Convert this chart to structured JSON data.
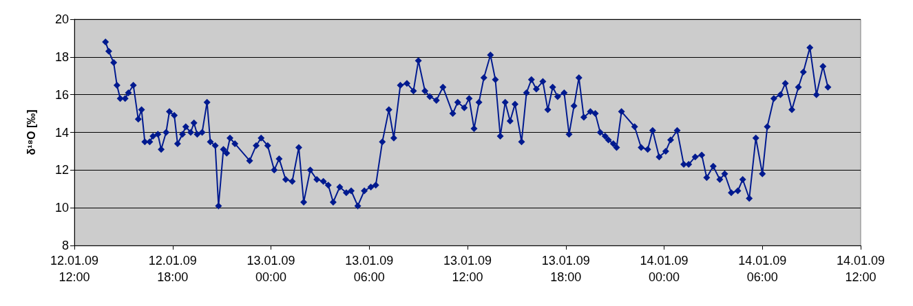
{
  "chart_data": {
    "type": "line",
    "ylabel": "δ¹⁸O [‰]",
    "x": [
      "--01-12T13:54",
      "--01-12T14:06",
      "--01-12T14:24",
      "--01-12T14:36",
      "--01-12T14:48",
      "--01-12T15:06",
      "--01-12T15:18",
      "--01-12T15:36",
      "--01-12T15:54",
      "--01-12T16:06",
      "--01-12T16:18",
      "--01-12T16:36",
      "--01-12T16:48",
      "--01-12T17:06",
      "--01-12T17:18",
      "--01-12T17:36",
      "--01-12T17:48",
      "--01-12T18:06",
      "--01-12T18:18",
      "--01-12T18:36",
      "--01-12T18:48",
      "--01-12T19:06",
      "--01-12T19:18",
      "--01-12T19:30",
      "--01-12T19:48",
      "--01-12T20:06",
      "--01-12T20:18",
      "--01-12T20:36",
      "--01-12T20:48",
      "--01-12T21:06",
      "--01-12T21:18",
      "--01-12T21:30",
      "--01-12T21:48",
      "--01-12T22:42",
      "--01-12T23:06",
      "--01-12T23:24",
      "--01-12T23:48",
      "--01-13T00:12",
      "--01-13T00:30",
      "--01-13T00:54",
      "--01-13T01:18",
      "--01-13T01:42",
      "--01-13T02:00",
      "--01-13T02:24",
      "--01-13T02:48",
      "--01-13T03:12",
      "--01-13T03:30",
      "--01-13T03:48",
      "--01-13T04:12",
      "--01-13T04:36",
      "--01-13T04:54",
      "--01-13T05:18",
      "--01-13T05:42",
      "--01-13T06:06",
      "--01-13T06:24",
      "--01-13T06:48",
      "--01-13T07:12",
      "--01-13T07:30",
      "--01-13T07:54",
      "--01-13T08:18",
      "--01-13T08:42",
      "--01-13T09:00",
      "--01-13T09:24",
      "--01-13T09:42",
      "--01-13T10:06",
      "--01-13T10:30",
      "--01-13T11:06",
      "--01-13T11:24",
      "--01-13T11:48",
      "--01-13T12:06",
      "--01-13T12:24",
      "--01-13T12:42",
      "--01-13T13:00",
      "--01-13T13:24",
      "--01-13T13:42",
      "--01-13T14:00",
      "--01-13T14:18",
      "--01-13T14:36",
      "--01-13T14:54",
      "--01-13T15:18",
      "--01-13T15:36",
      "--01-13T15:54",
      "--01-13T16:12",
      "--01-13T16:36",
      "--01-13T16:54",
      "--01-13T17:12",
      "--01-13T17:30",
      "--01-13T17:54",
      "--01-13T18:12",
      "--01-13T18:30",
      "--01-13T18:48",
      "--01-13T19:06",
      "--01-13T19:30",
      "--01-13T19:48",
      "--01-13T20:06",
      "--01-13T20:24",
      "--01-13T20:36",
      "--01-13T20:54",
      "--01-13T21:06",
      "--01-13T21:24",
      "--01-13T22:12",
      "--01-13T22:36",
      "--01-13T23:00",
      "--01-13T23:18",
      "--01-13T23:42",
      "--01-14T00:06",
      "--01-14T00:24",
      "--01-14T00:48",
      "--01-14T01:12",
      "--01-14T01:30",
      "--01-14T01:54",
      "--01-14T02:18",
      "--01-14T02:36",
      "--01-14T03:00",
      "--01-14T03:24",
      "--01-14T03:42",
      "--01-14T04:06",
      "--01-14T04:30",
      "--01-14T04:48",
      "--01-14T05:12",
      "--01-14T05:36",
      "--01-14T06:00",
      "--01-14T06:18",
      "--01-14T06:42",
      "--01-14T07:06",
      "--01-14T07:24",
      "--01-14T07:48",
      "--01-14T08:12",
      "--01-14T08:30",
      "--01-14T08:54",
      "--01-14T09:18",
      "--01-14T09:42",
      "--01-14T10:00"
    ],
    "values": [
      18.8,
      18.3,
      17.7,
      16.5,
      15.8,
      15.8,
      16.1,
      16.5,
      14.7,
      15.2,
      13.5,
      13.5,
      13.8,
      13.9,
      13.1,
      14.0,
      15.1,
      14.9,
      13.4,
      13.9,
      14.3,
      14.0,
      14.5,
      13.9,
      14.0,
      15.6,
      13.5,
      13.3,
      10.1,
      13.1,
      12.9,
      13.7,
      13.4,
      12.5,
      13.3,
      13.7,
      13.3,
      12.0,
      12.6,
      11.5,
      11.4,
      13.2,
      10.3,
      12.0,
      11.5,
      11.4,
      11.2,
      10.3,
      11.1,
      10.8,
      10.9,
      10.1,
      10.9,
      11.1,
      11.2,
      13.5,
      15.2,
      13.7,
      16.5,
      16.6,
      16.2,
      17.8,
      16.2,
      15.9,
      15.7,
      16.4,
      15.0,
      15.6,
      15.3,
      15.8,
      14.2,
      15.6,
      16.9,
      18.1,
      16.8,
      13.8,
      15.6,
      14.6,
      15.5,
      13.5,
      16.1,
      16.8,
      16.3,
      16.7,
      15.2,
      16.4,
      15.9,
      16.1,
      13.9,
      15.4,
      16.9,
      14.8,
      15.1,
      15.0,
      14.0,
      13.8,
      13.6,
      13.4,
      13.2,
      15.1,
      14.3,
      13.2,
      13.1,
      14.1,
      12.7,
      13.0,
      13.6,
      14.1,
      12.3,
      12.3,
      12.7,
      12.8,
      11.6,
      12.2,
      11.5,
      11.8,
      10.8,
      10.9,
      11.5,
      10.5,
      13.7,
      11.8,
      14.3,
      15.8,
      16.0,
      16.6,
      15.2,
      16.4,
      17.2,
      18.5,
      16.0,
      17.5,
      16.4
    ],
    "color": "#001a8f",
    "marker": "diamond",
    "line_style": "solid",
    "grid": "y",
    "xlim": [
      "--01-12T12:00",
      "--01-14T12:00"
    ],
    "xticks": [
      {
        "value": "--01-12T12:00",
        "label": "12.01.09\n12:00"
      },
      {
        "value": "--01-12T18:00",
        "label": "12.01.09\n18:00"
      },
      {
        "value": "--01-13T00:00",
        "label": "13.01.09\n00:00"
      },
      {
        "value": "--01-13T06:00",
        "label": "13.01.09\n06:00"
      },
      {
        "value": "--01-13T12:00",
        "label": "13.01.09\n12:00"
      },
      {
        "value": "--01-13T18:00",
        "label": "13.01.09\n18:00"
      },
      {
        "value": "--01-14T00:00",
        "label": "14.01.09\n00:00"
      },
      {
        "value": "--01-14T06:00",
        "label": "14.01.09\n06:00"
      },
      {
        "value": "--01-14T12:00",
        "label": "14.01.09\n12:00"
      }
    ],
    "ylim": [
      8,
      20
    ],
    "yticks": [
      8,
      10,
      12,
      14,
      16,
      18,
      20
    ]
  }
}
